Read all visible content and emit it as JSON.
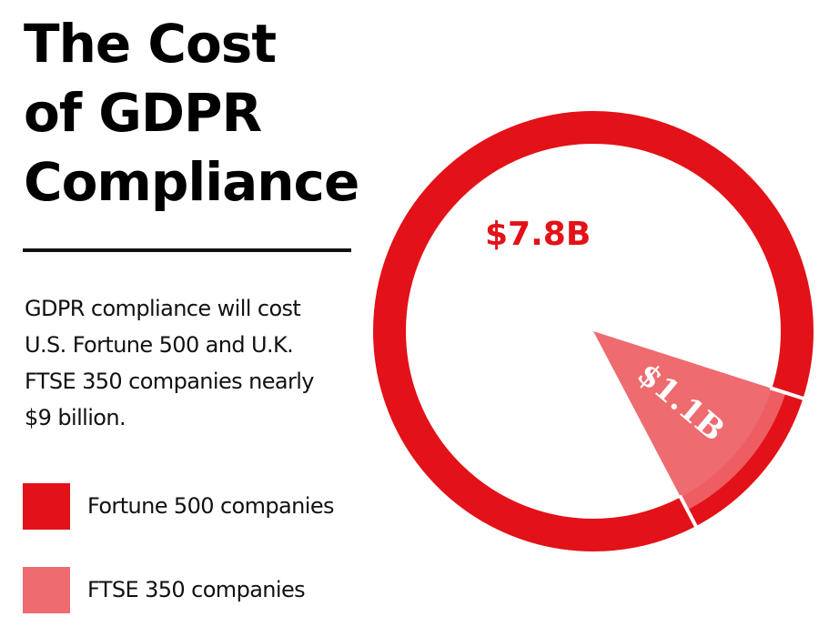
{
  "title": {
    "lines": [
      "The Cost",
      "of GDPR",
      "Compliance"
    ]
  },
  "description": {
    "lines": [
      "GDPR compliance will cost",
      "U.S. Fortune 500 and U.K.",
      "FTSE 350 companies nearly",
      "$9 billion."
    ]
  },
  "legend": [
    {
      "label": "Fortune 500 companies",
      "color": "#E31118"
    },
    {
      "label": "FTSE 350 companies",
      "color": "#EE6B70"
    }
  ],
  "colors": {
    "primary": "#E31118",
    "secondary": "#EE6B70",
    "text": "#000000",
    "background": "#FFFFFF"
  },
  "chart_labels": {
    "fortune": "$7.8B",
    "ftse": "$1.1B"
  },
  "chart_data": {
    "type": "pie",
    "title": "The Cost of GDPR Compliance",
    "subtitle": "GDPR compliance will cost U.S. Fortune 500 and U.K. FTSE 350 companies nearly $9 billion.",
    "categories": [
      "Fortune 500 companies",
      "FTSE 350 companies"
    ],
    "values": [
      7.8,
      1.1
    ],
    "unit": "USD billions",
    "data_labels": [
      "$7.8B",
      "$1.1B"
    ],
    "colors": [
      "#E31118",
      "#EE6B70"
    ],
    "legend_position": "left-bottom",
    "style": "ring outline with highlighted wedge for FTSE 350"
  }
}
